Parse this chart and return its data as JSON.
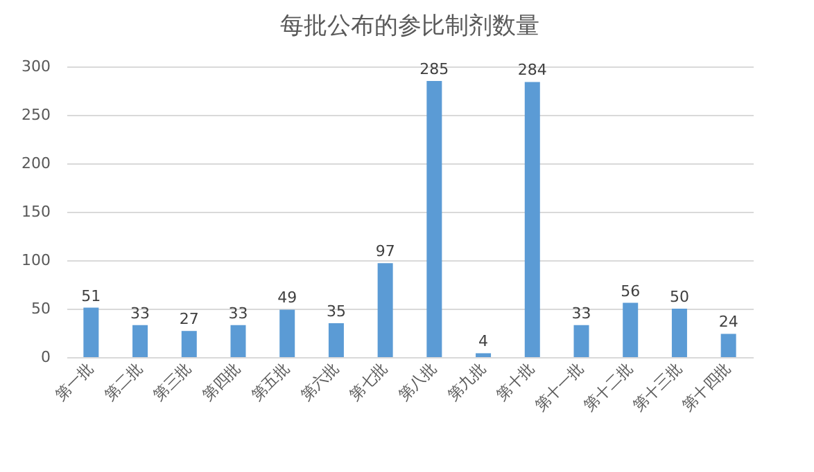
{
  "chart_data": {
    "type": "bar",
    "title": "每批公布的参比制剂数量",
    "categories": [
      "第一批",
      "第二批",
      "第三批",
      "第四批",
      "第五批",
      "第六批",
      "第七批",
      "第八批",
      "第九批",
      "第十批",
      "第十一批",
      "第十二批",
      "第十三批",
      "第十四批"
    ],
    "values": [
      51,
      33,
      27,
      33,
      49,
      35,
      97,
      285,
      4,
      284,
      33,
      56,
      50,
      24
    ],
    "color": "#5b9bd5",
    "ylim": [
      0,
      300
    ],
    "yticks": [
      0,
      50,
      100,
      150,
      200,
      250,
      300
    ],
    "grid": "y",
    "data_labels": true
  }
}
